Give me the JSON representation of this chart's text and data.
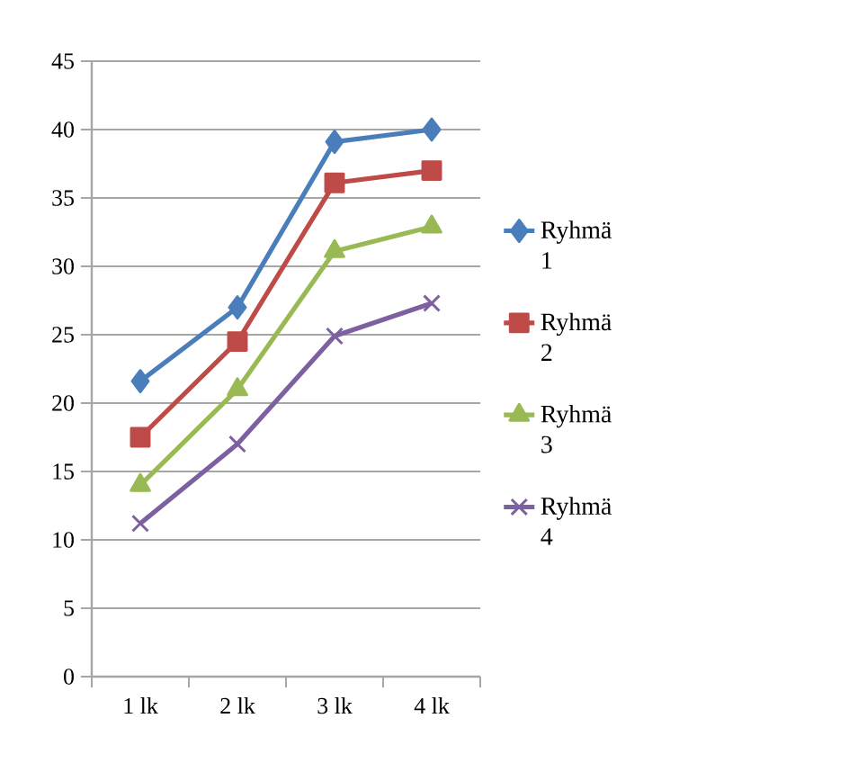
{
  "chart_data": {
    "type": "line",
    "categories": [
      "1 lk",
      "2 lk",
      "3 lk",
      "4 lk"
    ],
    "series": [
      {
        "name": "Ryhmä 1",
        "color": "#4a7ebb",
        "marker": "diamond",
        "values": [
          21.6,
          27.0,
          39.1,
          40.0
        ]
      },
      {
        "name": "Ryhmä 2",
        "color": "#be4b48",
        "marker": "square",
        "values": [
          17.5,
          24.5,
          36.1,
          37.0
        ]
      },
      {
        "name": "Ryhmä 3",
        "color": "#98b954",
        "marker": "triangle",
        "values": [
          14.0,
          21.0,
          31.1,
          32.9
        ]
      },
      {
        "name": "Ryhmä 4",
        "color": "#7d60a0",
        "marker": "cross",
        "values": [
          11.2,
          17.0,
          24.9,
          27.3
        ]
      }
    ],
    "ylim": [
      0,
      45
    ],
    "yticks": [
      0,
      5,
      10,
      15,
      20,
      25,
      30,
      35,
      40,
      45
    ],
    "grid": "y",
    "legend": "right",
    "line_style": "solid"
  }
}
